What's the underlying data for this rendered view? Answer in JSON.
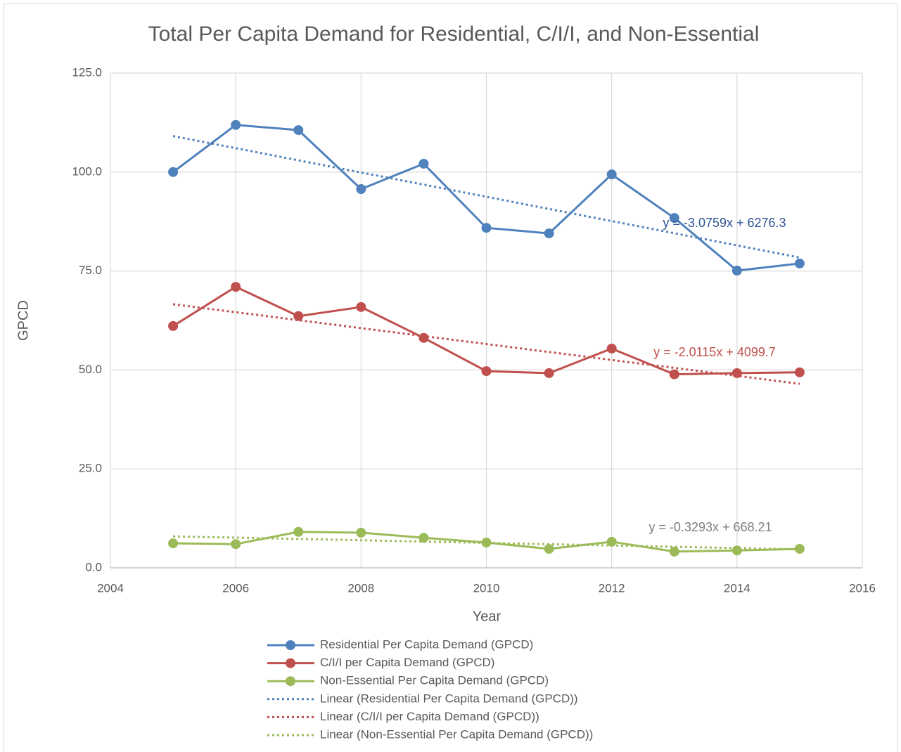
{
  "chart_data": {
    "type": "scatter",
    "title": "Total Per Capita Demand for Residential, C/I/I, and Non-Essential",
    "x_label": "Year",
    "y_label": "GPCD",
    "xlim": [
      2004,
      2016
    ],
    "xticks": [
      2004,
      2006,
      2008,
      2010,
      2012,
      2014,
      2016
    ],
    "ylim": [
      0,
      125
    ],
    "yticks": [
      {
        "value": 0,
        "label": "0.0"
      },
      {
        "value": 25,
        "label": "25.0"
      },
      {
        "value": 50,
        "label": "50.0"
      },
      {
        "value": 75,
        "label": "75.0"
      },
      {
        "value": 100,
        "label": "100.0"
      },
      {
        "value": 125,
        "label": "125.0"
      }
    ],
    "grid": true,
    "legend": "bottom",
    "series": [
      {
        "name": "Residential Per Capita Demand (GPCD)",
        "color": "#4f81bd",
        "style": "line-marker",
        "x": [
          2005,
          2006,
          2007,
          2008,
          2009,
          2010,
          2011,
          2012,
          2013,
          2014,
          2015
        ],
        "values": [
          100.0,
          111.9,
          110.6,
          95.7,
          102.1,
          85.9,
          84.5,
          99.4,
          88.4,
          75.1,
          76.9
        ]
      },
      {
        "name": "C/I/I per Capita Demand (GPCD)",
        "color": "#c0504d",
        "style": "line-marker",
        "x": [
          2005,
          2006,
          2007,
          2008,
          2009,
          2010,
          2011,
          2012,
          2013,
          2014,
          2015
        ],
        "values": [
          61.1,
          71.0,
          63.6,
          65.9,
          58.1,
          49.7,
          49.2,
          55.4,
          48.9,
          49.2,
          49.4
        ]
      },
      {
        "name": "Non-Essential Per Capita Demand (GPCD)",
        "color": "#9bbb59",
        "style": "line-marker",
        "x": [
          2005,
          2006,
          2007,
          2008,
          2009,
          2010,
          2011,
          2012,
          2013,
          2014,
          2015
        ],
        "values": [
          6.2,
          6.0,
          9.1,
          8.9,
          7.6,
          6.4,
          4.8,
          6.6,
          4.1,
          4.4,
          4.8
        ]
      },
      {
        "name": "Linear (Residential Per Capita Demand (GPCD))",
        "color": "#4f81bd",
        "style": "dotted",
        "x": [
          2005,
          2015
        ],
        "values": [
          109.1,
          78.4
        ]
      },
      {
        "name": "Linear (C/I/I per Capita Demand (GPCD))",
        "color": "#c0504d",
        "style": "dotted",
        "x": [
          2005,
          2015
        ],
        "values": [
          66.6,
          46.5
        ]
      },
      {
        "name": "Linear (Non-Essential Per Capita Demand (GPCD))",
        "color": "#9bbb59",
        "style": "dotted",
        "x": [
          2005,
          2015
        ],
        "values": [
          7.96,
          4.67
        ]
      }
    ],
    "annotations": [
      {
        "text": "y = -3.0759x + 6276.3",
        "color": "#2f5597"
      },
      {
        "text": "y = -2.0115x + 4099.7",
        "color": "#c0504d"
      },
      {
        "text": "y = -0.3293x + 668.21",
        "color": "#7f7f7f"
      }
    ]
  }
}
